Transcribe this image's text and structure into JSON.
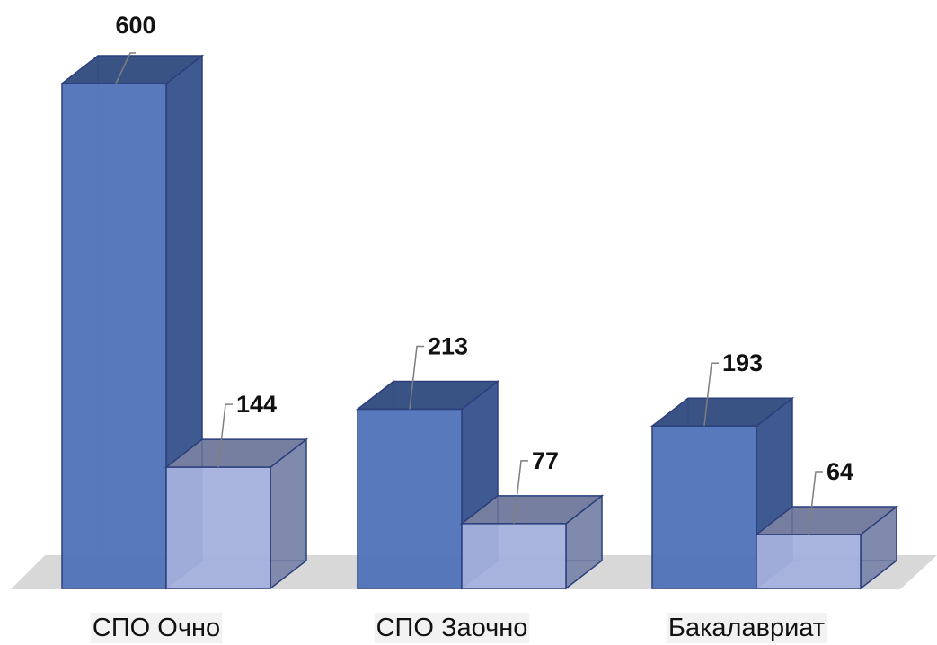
{
  "chart_data": {
    "type": "bar",
    "style": "3d-clustered",
    "categories": [
      "СПО Очно",
      "СПО Заочно",
      "Бакалавриат"
    ],
    "series": [
      {
        "values": [
          600,
          213,
          193
        ],
        "color": "#4f73b9"
      },
      {
        "values": [
          144,
          77,
          64
        ],
        "color": "#a4b1dd"
      }
    ],
    "ylim": [
      0,
      600
    ],
    "grid": false,
    "legend": "none"
  }
}
